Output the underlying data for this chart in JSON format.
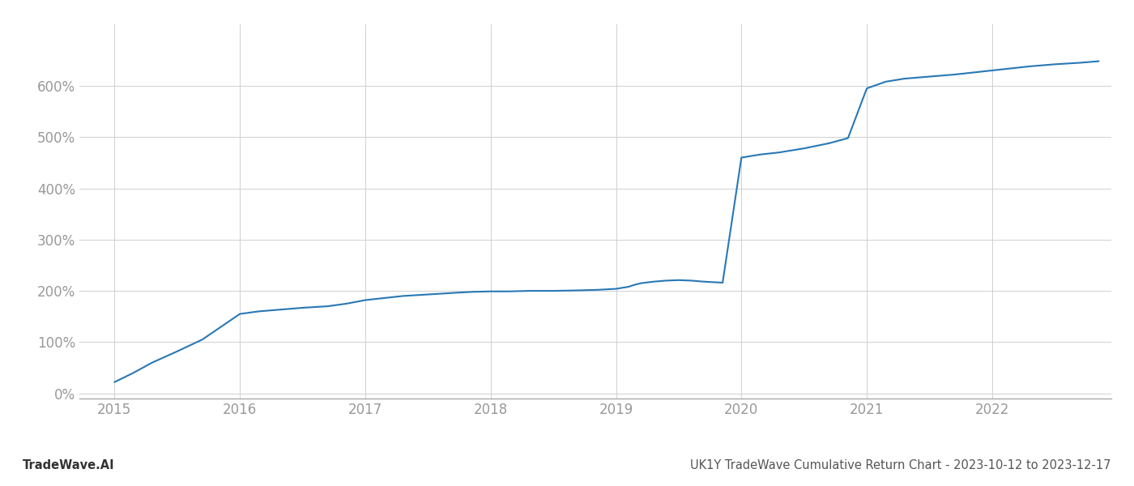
{
  "title": "UK1Y TradeWave Cumulative Return Chart - 2023-10-12 to 2023-12-17",
  "watermark": "TradeWave.AI",
  "line_color": "#2878b5",
  "background_color": "#ffffff",
  "grid_color": "#d0d0d0",
  "x_values": [
    2015.0,
    2015.15,
    2015.3,
    2015.5,
    2015.7,
    2015.85,
    2016.0,
    2016.15,
    2016.3,
    2016.5,
    2016.7,
    2016.85,
    2017.0,
    2017.15,
    2017.3,
    2017.5,
    2017.7,
    2017.85,
    2018.0,
    2018.15,
    2018.3,
    2018.5,
    2018.7,
    2018.85,
    2019.0,
    2019.05,
    2019.1,
    2019.15,
    2019.2,
    2019.3,
    2019.4,
    2019.5,
    2019.6,
    2019.7,
    2019.85,
    2020.0,
    2020.15,
    2020.3,
    2020.5,
    2020.7,
    2020.85,
    2021.0,
    2021.15,
    2021.3,
    2021.5,
    2021.7,
    2021.85,
    2022.0,
    2022.15,
    2022.3,
    2022.5,
    2022.7,
    2022.85
  ],
  "y_values": [
    22,
    40,
    60,
    82,
    105,
    130,
    155,
    160,
    163,
    167,
    170,
    175,
    182,
    186,
    190,
    193,
    196,
    198,
    199,
    199,
    200,
    200,
    201,
    202,
    204,
    206,
    208,
    212,
    215,
    218,
    220,
    221,
    220,
    218,
    216,
    460,
    466,
    470,
    478,
    488,
    498,
    595,
    608,
    614,
    618,
    622,
    626,
    630,
    634,
    638,
    642,
    645,
    648
  ],
  "xlim": [
    2014.72,
    2022.95
  ],
  "ylim": [
    -10,
    720
  ],
  "yticks": [
    0,
    100,
    200,
    300,
    400,
    500,
    600
  ],
  "xticks": [
    2015,
    2016,
    2017,
    2018,
    2019,
    2020,
    2021,
    2022
  ],
  "line_width": 1.5,
  "tick_fontsize": 12,
  "tick_color": "#999999",
  "spine_color": "#aaaaaa",
  "footer_fontsize": 10.5
}
